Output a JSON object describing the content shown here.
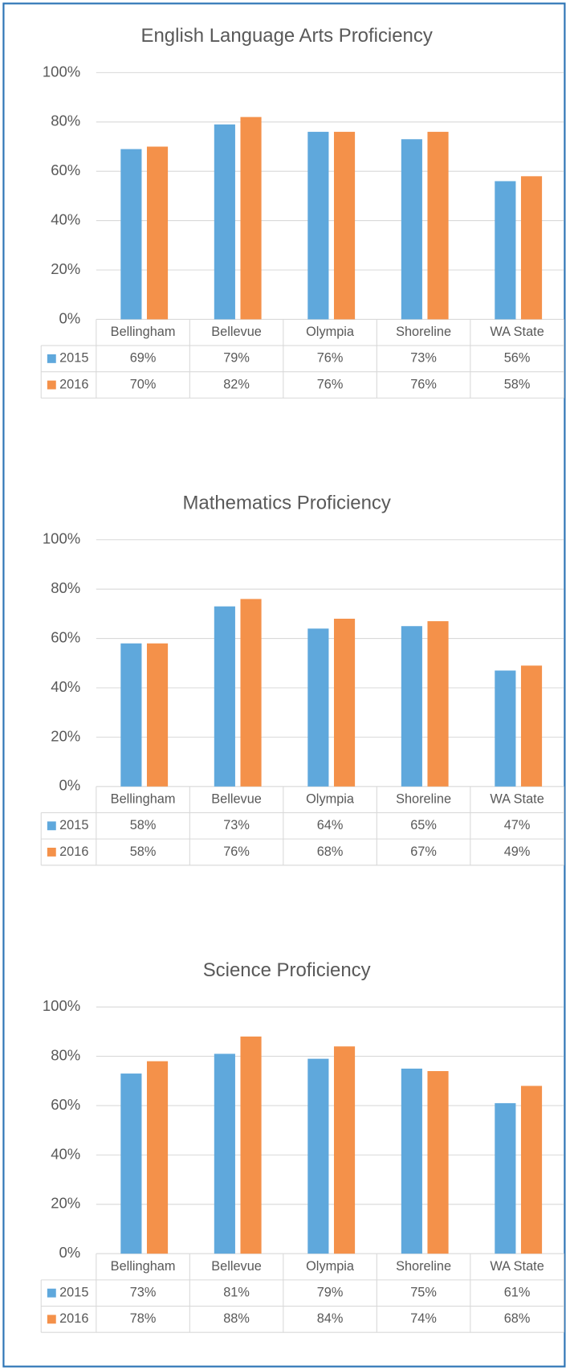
{
  "chart_data": [
    {
      "type": "bar",
      "title": "English Language Arts Proficiency",
      "categories": [
        "Bellingham",
        "Bellevue",
        "Olympia",
        "Shoreline",
        "WA State"
      ],
      "series": [
        {
          "name": "2015",
          "color": "#5fa8dc",
          "values": [
            69,
            79,
            76,
            73,
            56
          ],
          "value_labels": [
            "69%",
            "79%",
            "76%",
            "73%",
            "56%"
          ]
        },
        {
          "name": "2016",
          "color": "#f4914a",
          "values": [
            70,
            82,
            76,
            76,
            58
          ],
          "value_labels": [
            "70%",
            "82%",
            "76%",
            "76%",
            "58%"
          ]
        }
      ],
      "ylim": [
        0,
        100
      ],
      "yticks": [
        {
          "value": 0,
          "label": "0%"
        },
        {
          "value": 20,
          "label": "20%"
        },
        {
          "value": 40,
          "label": "40%"
        },
        {
          "value": 60,
          "label": "60%"
        },
        {
          "value": 80,
          "label": "80%"
        },
        {
          "value": 100,
          "label": "100%"
        }
      ],
      "grid": true
    },
    {
      "type": "bar",
      "title": "Mathematics Proficiency",
      "categories": [
        "Bellingham",
        "Bellevue",
        "Olympia",
        "Shoreline",
        "WA State"
      ],
      "series": [
        {
          "name": "2015",
          "color": "#5fa8dc",
          "values": [
            58,
            73,
            64,
            65,
            47
          ],
          "value_labels": [
            "58%",
            "73%",
            "64%",
            "65%",
            "47%"
          ]
        },
        {
          "name": "2016",
          "color": "#f4914a",
          "values": [
            58,
            76,
            68,
            67,
            49
          ],
          "value_labels": [
            "58%",
            "76%",
            "68%",
            "67%",
            "49%"
          ]
        }
      ],
      "ylim": [
        0,
        100
      ],
      "yticks": [
        {
          "value": 0,
          "label": "0%"
        },
        {
          "value": 20,
          "label": "20%"
        },
        {
          "value": 40,
          "label": "40%"
        },
        {
          "value": 60,
          "label": "60%"
        },
        {
          "value": 80,
          "label": "80%"
        },
        {
          "value": 100,
          "label": "100%"
        }
      ],
      "grid": true
    },
    {
      "type": "bar",
      "title": "Science Proficiency",
      "categories": [
        "Bellingham",
        "Bellevue",
        "Olympia",
        "Shoreline",
        "WA State"
      ],
      "series": [
        {
          "name": "2015",
          "color": "#5fa8dc",
          "values": [
            73,
            81,
            79,
            75,
            61
          ],
          "value_labels": [
            "73%",
            "81%",
            "79%",
            "75%",
            "61%"
          ]
        },
        {
          "name": "2016",
          "color": "#f4914a",
          "values": [
            78,
            88,
            84,
            74,
            68
          ],
          "value_labels": [
            "78%",
            "88%",
            "84%",
            "74%",
            "68%"
          ]
        }
      ],
      "ylim": [
        0,
        100
      ],
      "yticks": [
        {
          "value": 0,
          "label": "0%"
        },
        {
          "value": 20,
          "label": "20%"
        },
        {
          "value": 40,
          "label": "40%"
        },
        {
          "value": 60,
          "label": "60%"
        },
        {
          "value": 80,
          "label": "80%"
        },
        {
          "value": 100,
          "label": "100%"
        }
      ],
      "grid": true
    }
  ]
}
